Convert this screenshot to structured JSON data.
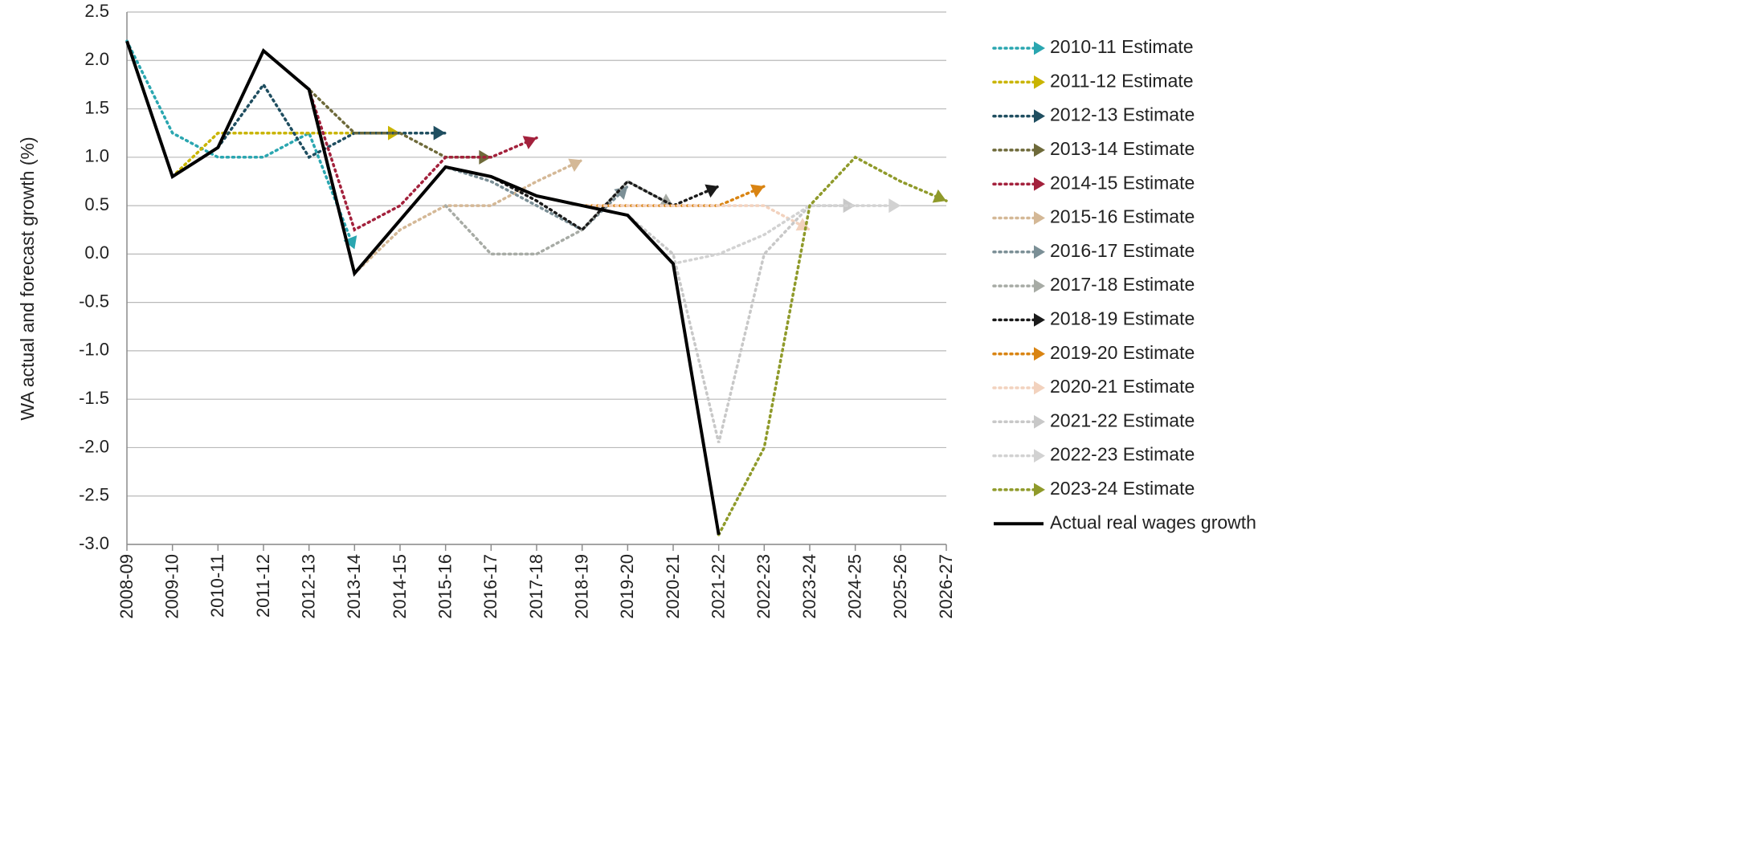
{
  "chart_data": {
    "type": "line",
    "ylabel": "WA actual and forecast growth (%)",
    "xlabel": "",
    "ylim": [
      -3.0,
      2.5
    ],
    "yticks": [
      2.5,
      2.0,
      1.5,
      1.0,
      0.5,
      0.0,
      -0.5,
      -1.0,
      -1.5,
      -2.0,
      -2.5,
      -3.0
    ],
    "ytick_labels": [
      "2.5",
      "2.0",
      "1.5",
      "1.0",
      "0.5",
      "0.0",
      "-0.5",
      "-1.0",
      "-1.5",
      "-2.0",
      "-2.5",
      "-3.0"
    ],
    "categories": [
      "2008-09",
      "2009-10",
      "2010-11",
      "2011-12",
      "2012-13",
      "2013-14",
      "2014-15",
      "2015-16",
      "2016-17",
      "2017-18",
      "2018-19",
      "2019-20",
      "2020-21",
      "2021-22",
      "2022-23",
      "2023-24",
      "2024-25",
      "2025-26",
      "2026-27"
    ],
    "grid": true,
    "legend_position": "right",
    "series": [
      {
        "name": "2010-11 Estimate",
        "color": "#2aa6b0",
        "style": "dotted",
        "points": [
          [
            0,
            2.2
          ],
          [
            1,
            1.25
          ],
          [
            2,
            1.0
          ],
          [
            3,
            1.0
          ],
          [
            4,
            1.25
          ],
          [
            5,
            0.05
          ]
        ]
      },
      {
        "name": "2011-12 Estimate",
        "color": "#c9b400",
        "style": "dotted",
        "points": [
          [
            1,
            0.8
          ],
          [
            2,
            1.25
          ],
          [
            3,
            1.25
          ],
          [
            4,
            1.25
          ],
          [
            5,
            1.25
          ],
          [
            6,
            1.25
          ]
        ]
      },
      {
        "name": "2012-13 Estimate",
        "color": "#1f4e60",
        "style": "dotted",
        "points": [
          [
            2,
            1.1
          ],
          [
            3,
            1.75
          ],
          [
            4,
            1.0
          ],
          [
            5,
            1.25
          ],
          [
            6,
            1.25
          ],
          [
            7,
            1.25
          ]
        ]
      },
      {
        "name": "2013-14 Estimate",
        "color": "#6e6a3a",
        "style": "dotted",
        "points": [
          [
            3,
            2.1
          ],
          [
            4,
            1.7
          ],
          [
            5,
            1.25
          ],
          [
            6,
            1.25
          ],
          [
            7,
            1.0
          ],
          [
            8,
            1.0
          ]
        ]
      },
      {
        "name": "2014-15 Estimate",
        "color": "#a3213c",
        "style": "dotted",
        "points": [
          [
            4,
            1.7
          ],
          [
            5,
            0.25
          ],
          [
            6,
            0.5
          ],
          [
            7,
            1.0
          ],
          [
            8,
            1.0
          ],
          [
            9,
            1.2
          ]
        ]
      },
      {
        "name": "2015-16 Estimate",
        "color": "#d4b896",
        "style": "dotted",
        "points": [
          [
            5,
            -0.2
          ],
          [
            6,
            0.25
          ],
          [
            7,
            0.5
          ],
          [
            8,
            0.5
          ],
          [
            9,
            0.75
          ],
          [
            10,
            0.97
          ]
        ]
      },
      {
        "name": "2016-17 Estimate",
        "color": "#7b8f96",
        "style": "dotted",
        "points": [
          [
            6,
            0.35
          ],
          [
            7,
            0.9
          ],
          [
            8,
            0.75
          ],
          [
            9,
            0.5
          ],
          [
            10,
            0.25
          ],
          [
            11,
            0.7
          ]
        ]
      },
      {
        "name": "2017-18 Estimate",
        "color": "#a7aba5",
        "style": "dotted",
        "points": [
          [
            7,
            0.5
          ],
          [
            8,
            0.0
          ],
          [
            9,
            0.0
          ],
          [
            10,
            0.25
          ],
          [
            11,
            0.75
          ],
          [
            12,
            0.5
          ]
        ]
      },
      {
        "name": "2018-19 Estimate",
        "color": "#1a1a1a",
        "style": "dotted",
        "points": [
          [
            8,
            0.8
          ],
          [
            9,
            0.55
          ],
          [
            10,
            0.25
          ],
          [
            11,
            0.75
          ],
          [
            12,
            0.5
          ],
          [
            13,
            0.7
          ]
        ]
      },
      {
        "name": "2019-20 Estimate",
        "color": "#d98412",
        "style": "dotted",
        "points": [
          [
            9,
            0.6
          ],
          [
            10,
            0.5
          ],
          [
            11,
            0.5
          ],
          [
            12,
            0.5
          ],
          [
            13,
            0.5
          ],
          [
            14,
            0.7
          ]
        ]
      },
      {
        "name": "2020-21 Estimate",
        "color": "#f2d2be",
        "style": "dotted",
        "points": [
          [
            10,
            0.5
          ],
          [
            11,
            0.5
          ],
          [
            12,
            0.5
          ],
          [
            13,
            0.5
          ],
          [
            14,
            0.5
          ],
          [
            15,
            0.25
          ]
        ]
      },
      {
        "name": "2021-22 Estimate",
        "color": "#c8c8c8",
        "style": "dotted",
        "points": [
          [
            11,
            0.4
          ],
          [
            12,
            0.0
          ],
          [
            13,
            -1.95
          ],
          [
            14,
            0.0
          ],
          [
            15,
            0.5
          ],
          [
            16,
            0.5
          ]
        ]
      },
      {
        "name": "2022-23 Estimate",
        "color": "#d2d2d2",
        "style": "dotted",
        "points": [
          [
            12,
            -0.1
          ],
          [
            13,
            0.0
          ],
          [
            14,
            0.2
          ],
          [
            15,
            0.5
          ],
          [
            16,
            0.5
          ],
          [
            17,
            0.5
          ]
        ]
      },
      {
        "name": "2023-24 Estimate",
        "color": "#8f9a2a",
        "style": "dotted",
        "points": [
          [
            13,
            -2.9
          ],
          [
            14,
            -2.0
          ],
          [
            15,
            0.5
          ],
          [
            16,
            1.0
          ],
          [
            17,
            0.75
          ],
          [
            18,
            0.55
          ]
        ]
      },
      {
        "name": "Actual real wages growth",
        "color": "#000000",
        "style": "solid",
        "points": [
          [
            0,
            2.2
          ],
          [
            1,
            0.8
          ],
          [
            2,
            1.1
          ],
          [
            3,
            2.1
          ],
          [
            4,
            1.7
          ],
          [
            5,
            -0.2
          ],
          [
            6,
            0.35
          ],
          [
            7,
            0.9
          ],
          [
            8,
            0.8
          ],
          [
            9,
            0.6
          ],
          [
            10,
            0.5
          ],
          [
            11,
            0.4
          ],
          [
            12,
            -0.1
          ],
          [
            13,
            -2.9
          ]
        ]
      }
    ]
  }
}
